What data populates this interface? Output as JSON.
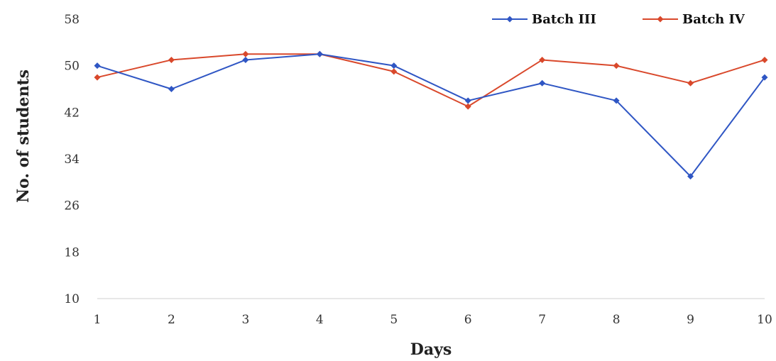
{
  "chart_data": {
    "type": "line",
    "title": "",
    "xlabel": "Days",
    "ylabel": "No. of students",
    "categories": [
      "1",
      "2",
      "3",
      "4",
      "5",
      "6",
      "7",
      "8",
      "9",
      "10"
    ],
    "x": [
      1,
      2,
      3,
      4,
      5,
      6,
      7,
      8,
      9,
      10
    ],
    "ylim": [
      10,
      58
    ],
    "yticks": [
      "10",
      "18",
      "26",
      "34",
      "42",
      "50",
      "58"
    ],
    "ytick_values": [
      10,
      18,
      26,
      34,
      42,
      50,
      58
    ],
    "grid": false,
    "legend_position": "top-right",
    "series": [
      {
        "name": "Batch III",
        "color": "#2f56c4",
        "values": [
          50,
          46,
          51,
          52,
          50,
          44,
          47,
          44,
          31,
          48
        ]
      },
      {
        "name": "Batch IV",
        "color": "#d9482b",
        "values": [
          48,
          51,
          52,
          52,
          49,
          43,
          51,
          50,
          47,
          51
        ]
      }
    ]
  }
}
